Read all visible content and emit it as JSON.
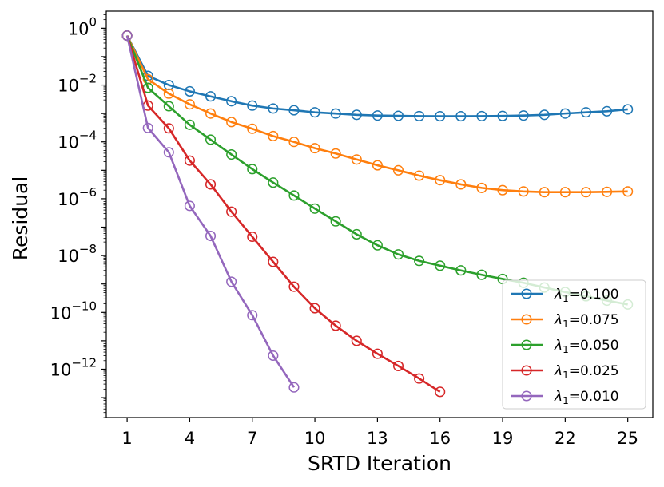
{
  "chart_data": {
    "type": "line",
    "xlabel": "SRTD Iteration",
    "ylabel": "Residual",
    "xlim": [
      0.0,
      26.2
    ],
    "ylim_log10": [
      -13.7,
      0.6
    ],
    "y_scale": "log",
    "grid": false,
    "legend_placement": "bottom-right",
    "x_ticks": [
      1,
      4,
      7,
      10,
      13,
      16,
      19,
      22,
      25
    ],
    "y_ticks": [
      {
        "base": "10",
        "exp": "0",
        "log10": 0
      },
      {
        "base": "10",
        "exp": "−2",
        "log10": -2
      },
      {
        "base": "10",
        "exp": "−4",
        "log10": -4
      },
      {
        "base": "10",
        "exp": "−6",
        "log10": -6
      },
      {
        "base": "10",
        "exp": "−8",
        "log10": -8
      },
      {
        "base": "10",
        "exp": "−10",
        "log10": -10
      },
      {
        "base": "10",
        "exp": "−12",
        "log10": -12
      }
    ],
    "series": [
      {
        "name": "λ₁=0.100",
        "legend_symbol": "λ",
        "legend_sub": "1",
        "legend_value": "=0.100",
        "color": "#1f77b4",
        "x": [
          1,
          2,
          3,
          4,
          5,
          6,
          7,
          8,
          9,
          10,
          11,
          12,
          13,
          14,
          15,
          16,
          17,
          18,
          19,
          20,
          21,
          22,
          23,
          24,
          25
        ],
        "y": [
          0.55,
          0.021,
          0.01,
          0.006,
          0.004,
          0.0027,
          0.0019,
          0.0015,
          0.0013,
          0.0011,
          0.001,
          0.0009,
          0.00085,
          0.00083,
          0.00081,
          0.0008,
          0.0008,
          0.00081,
          0.00082,
          0.00085,
          0.0009,
          0.001,
          0.0011,
          0.0012,
          0.0014
        ]
      },
      {
        "name": "λ₁=0.075",
        "legend_symbol": "λ",
        "legend_sub": "1",
        "legend_value": "=0.075",
        "color": "#ff7f0e",
        "x": [
          1,
          2,
          3,
          4,
          5,
          6,
          7,
          8,
          9,
          10,
          11,
          12,
          13,
          14,
          15,
          16,
          17,
          18,
          19,
          20,
          21,
          22,
          23,
          24,
          25
        ],
        "y": [
          0.55,
          0.016,
          0.005,
          0.0021,
          0.001,
          0.0005,
          0.00029,
          0.00016,
          0.0001,
          6e-05,
          3.9e-05,
          2.4e-05,
          1.5e-05,
          1e-05,
          6.5e-06,
          4.5e-06,
          3.2e-06,
          2.4e-06,
          2e-06,
          1.8e-06,
          1.7e-06,
          1.7e-06,
          1.7e-06,
          1.75e-06,
          1.8e-06
        ]
      },
      {
        "name": "λ₁=0.050",
        "legend_symbol": "λ",
        "legend_sub": "1",
        "legend_value": "=0.050",
        "color": "#2ca02c",
        "x": [
          1,
          2,
          3,
          4,
          5,
          6,
          7,
          8,
          9,
          10,
          11,
          12,
          13,
          14,
          15,
          16,
          17,
          18,
          19,
          20,
          21,
          22,
          23,
          24,
          25
        ],
        "y": [
          0.55,
          0.008,
          0.0018,
          0.0004,
          0.00012,
          3.6e-05,
          1.1e-05,
          3.7e-06,
          1.3e-06,
          4.5e-07,
          1.6e-07,
          5.6e-08,
          2.3e-08,
          1.1e-08,
          6.5e-09,
          4.4e-09,
          3e-09,
          2.1e-09,
          1.5e-09,
          1.1e-09,
          7.5e-10,
          5.2e-10,
          3.7e-10,
          2.6e-10,
          1.9e-10
        ]
      },
      {
        "name": "λ₁=0.025",
        "legend_symbol": "λ",
        "legend_sub": "1",
        "legend_value": "=0.025",
        "color": "#d62728",
        "x": [
          1,
          2,
          3,
          4,
          5,
          6,
          7,
          8,
          9,
          10,
          11,
          12,
          13,
          14,
          15,
          16
        ],
        "y": [
          0.55,
          0.0019,
          0.0003,
          2.2e-05,
          3.2e-06,
          3.5e-07,
          4.6e-08,
          6e-09,
          8e-10,
          1.4e-10,
          3.4e-11,
          1e-11,
          3.5e-12,
          1.3e-12,
          4.7e-13,
          1.6e-13
        ]
      },
      {
        "name": "λ₁=0.010",
        "legend_symbol": "λ",
        "legend_sub": "1",
        "legend_value": "=0.010",
        "color": "#9467bd",
        "x": [
          1,
          2,
          3,
          4,
          5,
          6,
          7,
          8,
          9
        ],
        "y": [
          0.55,
          0.00031,
          4.3e-05,
          5.6e-07,
          4.9e-08,
          1.2e-09,
          8e-11,
          3e-12,
          2.3e-13
        ]
      }
    ]
  }
}
